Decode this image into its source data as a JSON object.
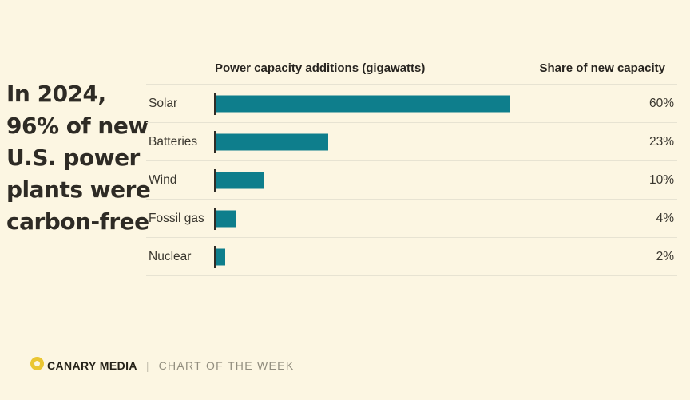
{
  "page": {
    "background": "#fcf6e2"
  },
  "headline": {
    "text": "In 2024,\n96% of new\nU.S. power\nplants were\ncarbon-free"
  },
  "chart": {
    "col1_header": "Power capacity additions (gigawatts)",
    "col2_header": "Share of new capacity",
    "bar_color": "#0e7e8c",
    "rows": [
      {
        "label": "Solar",
        "share": "60%",
        "pct": 60
      },
      {
        "label": "Batteries",
        "share": "23%",
        "pct": 23
      },
      {
        "label": "Wind",
        "share": "10%",
        "pct": 10
      },
      {
        "label": "Fossil gas",
        "share": "4%",
        "pct": 4
      },
      {
        "label": "Nuclear",
        "share": "2%",
        "pct": 2
      }
    ]
  },
  "footer": {
    "brand": "CANARY MEDIA",
    "divider": "|",
    "series": "CHART OF THE WEEK",
    "logo_color": "#eac632"
  },
  "chart_data": {
    "type": "bar",
    "orientation": "horizontal",
    "title": "Power capacity additions (gigawatts)",
    "value_column_label": "Share of new capacity",
    "categories": [
      "Solar",
      "Batteries",
      "Wind",
      "Fossil gas",
      "Nuclear"
    ],
    "values": [
      60,
      23,
      10,
      4,
      2
    ],
    "unit": "% share of new capacity",
    "xlim": [
      0,
      60
    ],
    "grid": false,
    "legend": false,
    "annotation": "In 2024, 96% of new U.S. power plants were carbon-free",
    "bar_color": "#0e7e8c"
  }
}
